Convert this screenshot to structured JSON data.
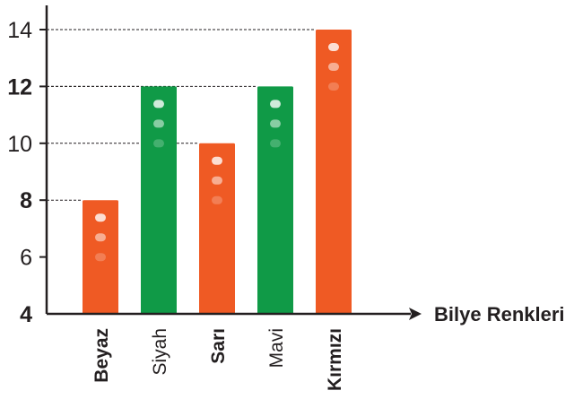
{
  "chart_data": {
    "type": "bar",
    "categories": [
      "Beyaz",
      "Siyah",
      "Sarı",
      "Mavi",
      "Kırmızı"
    ],
    "values": [
      8,
      12,
      10,
      12,
      14
    ],
    "bar_colors": [
      "#ef5a24",
      "#109a47",
      "#ef5a24",
      "#109a47",
      "#ef5a24"
    ],
    "category_bold": [
      true,
      false,
      true,
      false,
      true
    ],
    "yticks": [
      4,
      6,
      8,
      10,
      12,
      14
    ],
    "ytick_bold": [
      true,
      false,
      true,
      false,
      true,
      false
    ],
    "ylim": [
      4,
      15
    ],
    "xlabel": "Bilye Renkleri",
    "ylabel": "",
    "title": ""
  }
}
